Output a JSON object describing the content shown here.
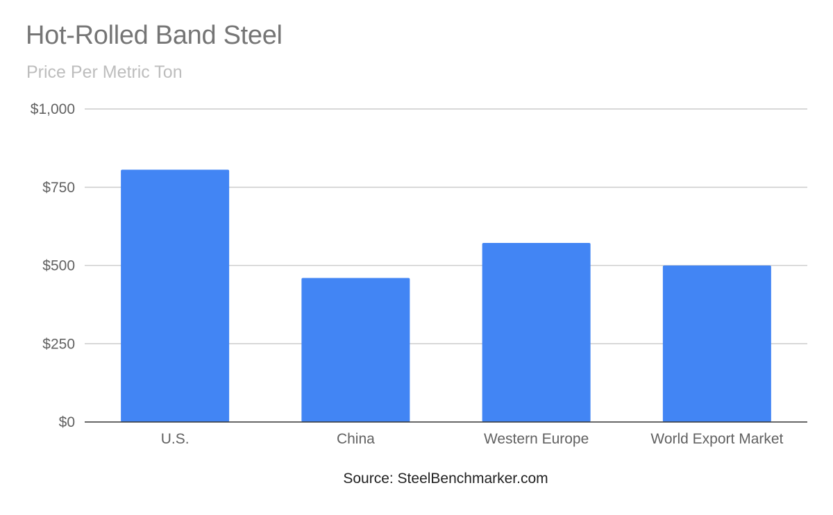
{
  "chart_data": {
    "type": "bar",
    "title": "Hot-Rolled Band Steel",
    "subtitle": "Price Per Metric Ton",
    "categories": [
      "U.S.",
      "China",
      "Western Europe",
      "World Export Market"
    ],
    "values": [
      806,
      460,
      572,
      500
    ],
    "ylim": [
      0,
      1000
    ],
    "yticks": [
      0,
      250,
      500,
      750,
      1000
    ],
    "ytick_labels": [
      "$0",
      "$250",
      "$500",
      "$750",
      "$1,000"
    ],
    "xlabel": "",
    "ylabel": "",
    "grid": true,
    "legend": "none",
    "bar_color": "#4285f4",
    "source": "Source: SteelBenchmarker.com"
  }
}
